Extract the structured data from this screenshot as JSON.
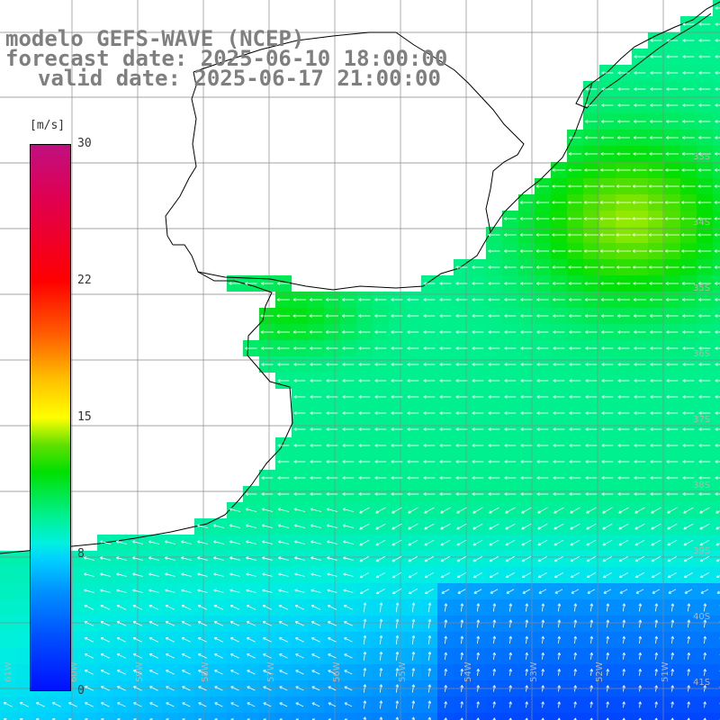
{
  "title": {
    "line1": "modelo GEFS-WAVE (NCEP)",
    "line2": "forecast date: 2025-06-10 18:00:00",
    "line3": "valid date: 2025-06-17 21:00:00"
  },
  "colorbar": {
    "unit": "[m/s]",
    "min": 0,
    "max": 30,
    "tick_labels": [
      "30",
      "22",
      "15",
      "8",
      "0"
    ],
    "tick_values": [
      30,
      22,
      15,
      8,
      0
    ]
  },
  "lon_labels": [
    "61W",
    "60W",
    "59W",
    "58W",
    "57W",
    "56W",
    "55W",
    "54W",
    "53W",
    "52W",
    "51W"
  ],
  "lat_labels": [
    "33S",
    "34S",
    "35S",
    "36S",
    "37S",
    "38S",
    "39S",
    "40S",
    "41S"
  ],
  "colors": {
    "land": "#ffffff",
    "coast": "#000000",
    "grid": "#888888",
    "arrow": "#ffffff",
    "title_text": "#7f7f7f"
  }
}
